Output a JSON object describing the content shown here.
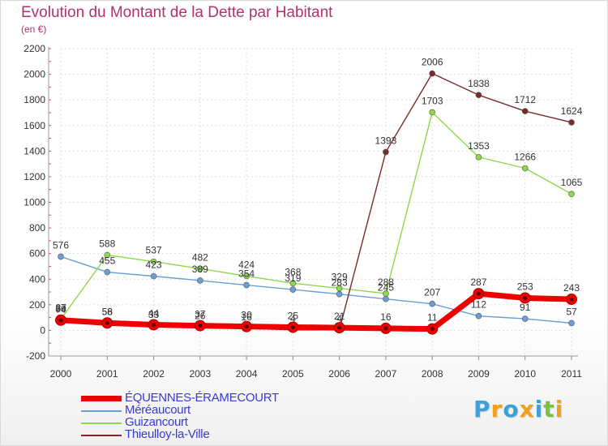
{
  "chart_data": {
    "type": "line",
    "title": "Evolution du Montant de la Dette par Habitant",
    "subtitle": "(en €)",
    "xlabel": "",
    "ylabel": "",
    "x": [
      "2000",
      "2001",
      "2002",
      "2003",
      "2004",
      "2005",
      "2006",
      "2007",
      "2008",
      "2009",
      "2010",
      "2011"
    ],
    "ylim": [
      -200,
      2200
    ],
    "yticks": [
      -200,
      0,
      200,
      400,
      600,
      800,
      1000,
      1200,
      1400,
      1600,
      1800,
      2000,
      2200
    ],
    "grid": true,
    "legend_position": "bottom-left",
    "series": [
      {
        "name": "ÉQUENNES-ÉRAMECOURT",
        "color": "#ee0000",
        "values": [
          80,
          58,
          44,
          37,
          30,
          25,
          21,
          16,
          11,
          287,
          253,
          243
        ],
        "labels": [
          "80",
          "58",
          "44",
          "37",
          "30",
          "25",
          "21",
          "16",
          "11",
          "287",
          "253",
          "243"
        ]
      },
      {
        "name": "Méréaucourt",
        "color": "#6a9fd4",
        "values": [
          576,
          455,
          423,
          389,
          354,
          319,
          283,
          245,
          207,
          112,
          91,
          57
        ],
        "labels": [
          "576",
          "455",
          "423",
          "389",
          "354",
          "319",
          "283",
          "245",
          "207",
          "112",
          "91",
          "57"
        ]
      },
      {
        "name": "Guizancourt",
        "color": "#8ed84a",
        "values": [
          87,
          588,
          537,
          482,
          424,
          368,
          329,
          288,
          1703,
          1353,
          1266,
          1065
        ],
        "labels": [
          "87",
          "588",
          "537",
          "482",
          "424",
          "368",
          "329",
          "288",
          "1703",
          "1353",
          "1266",
          "1065"
        ]
      },
      {
        "name": "Thieulloy-la-Ville",
        "color": "#7a2a2a",
        "values": [
          74,
          56,
          33,
          26,
          16,
          4,
          4,
          1393,
          2006,
          1838,
          1712,
          1624
        ],
        "labels": [
          "74",
          "56",
          "33",
          "26",
          "16",
          "4",
          "4",
          "1393",
          "2006",
          "1838",
          "1712",
          "1624"
        ]
      }
    ]
  },
  "logo": {
    "letters": [
      "P",
      "r",
      "o",
      "x",
      "i",
      "t",
      "i"
    ],
    "colors": [
      "#3ea0d8",
      "#f2a11f",
      "#3ea0d8",
      "#f2a11f",
      "#3ea0d8",
      "#7cc242",
      "#f2a11f"
    ]
  }
}
